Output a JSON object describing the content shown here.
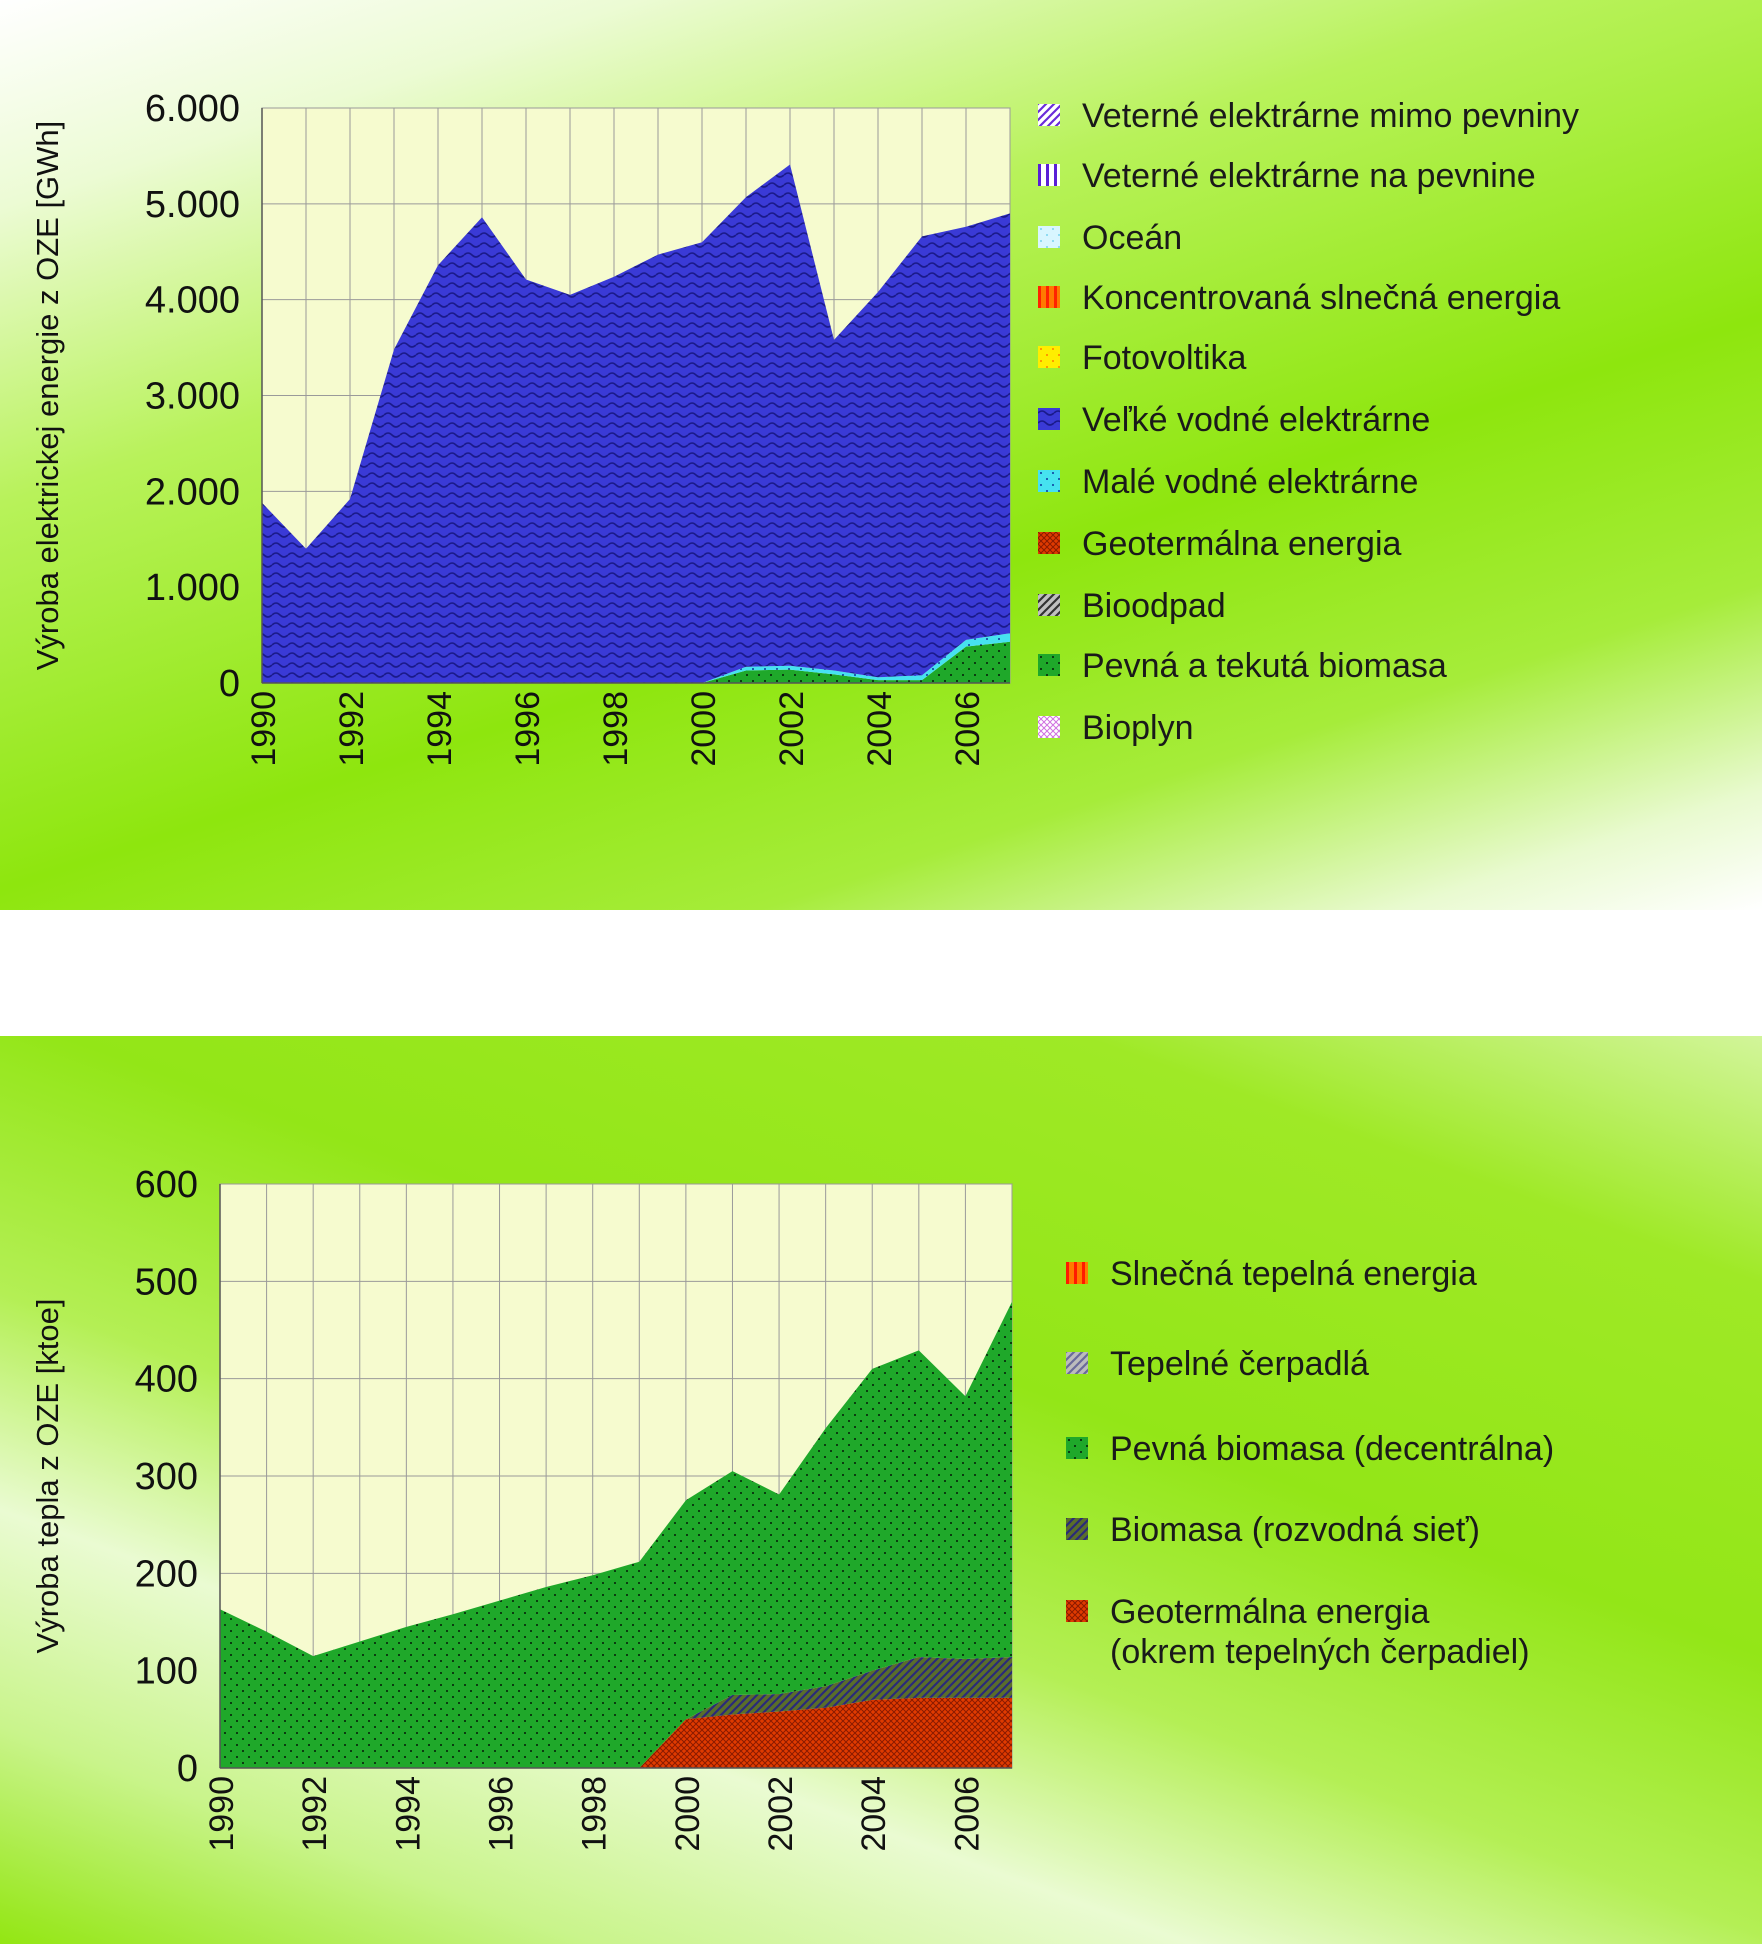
{
  "chart_data": [
    {
      "type": "area",
      "title": "",
      "ylabel": "Výroba elektrickej energie z OZE [GWh]",
      "xlabel": "",
      "ylim": [
        0,
        6000
      ],
      "y_ticks": [
        "0",
        "1.000",
        "2.000",
        "3.000",
        "4.000",
        "5.000",
        "6.000"
      ],
      "y_tick_values": [
        0,
        1000,
        2000,
        3000,
        4000,
        5000,
        6000
      ],
      "x": [
        1990,
        1991,
        1992,
        1993,
        1994,
        1995,
        1996,
        1997,
        1998,
        1999,
        2000,
        2001,
        2002,
        2003,
        2004,
        2005,
        2006,
        2007
      ],
      "x_ticks": [
        "1990",
        "1992",
        "1994",
        "1996",
        "1998",
        "2000",
        "2002",
        "2004",
        "2006"
      ],
      "grid": true,
      "legend_position": "right",
      "legend": [
        {
          "name": "Veterné elektrárne mimo pevniny",
          "color": "#ffffff",
          "accent": "#6a2bd9",
          "pattern": "diag"
        },
        {
          "name": "Veterné elektrárne na pevnine",
          "color": "#ffffff",
          "accent": "#5a1fd6",
          "pattern": "vstripe"
        },
        {
          "name": "Oceán",
          "color": "#d8f6ff",
          "accent": "#8fdcf2",
          "pattern": "dots"
        },
        {
          "name": "Koncentrovaná slnečná energia",
          "color": "#ff7a00",
          "accent": "#ff2200",
          "pattern": "vstripe"
        },
        {
          "name": "Fotovoltika",
          "color": "#ffee00",
          "accent": "#ff9900",
          "pattern": "dots"
        },
        {
          "name": "Veľké vodné elektrárne",
          "color": "#3a3ad6",
          "accent": "#1a1a8a",
          "pattern": "wave"
        },
        {
          "name": "Malé vodné elektrárne",
          "color": "#46e2f0",
          "accent": "#1a5fb0",
          "pattern": "dots"
        },
        {
          "name": "Geotermálna energia",
          "color": "#e03a00",
          "accent": "#8a1a00",
          "pattern": "cross"
        },
        {
          "name": "Bioodpad",
          "color": "#c0c0c0",
          "accent": "#333333",
          "pattern": "diag"
        },
        {
          "name": "Pevná a tekutá biomasa",
          "color": "#1fa82a",
          "accent": "#0b3d10",
          "pattern": "dots"
        },
        {
          "name": "Bioplyn",
          "color": "#ffffff",
          "accent": "#d070e0",
          "pattern": "cross"
        }
      ],
      "series": [
        {
          "name": "Pevná a tekutá biomasa",
          "color": "#1fa82a",
          "accent": "#0b3d10",
          "pattern": "dots",
          "values": [
            0,
            0,
            0,
            0,
            0,
            0,
            0,
            0,
            0,
            0,
            0,
            130,
            140,
            90,
            30,
            30,
            380,
            430
          ]
        },
        {
          "name": "Malé vodné elektrárne",
          "color": "#46e2f0",
          "accent": "#1a5fb0",
          "pattern": "dots",
          "values": [
            0,
            0,
            0,
            0,
            0,
            0,
            0,
            0,
            0,
            0,
            0,
            40,
            40,
            40,
            30,
            50,
            70,
            90
          ]
        },
        {
          "name": "Veľké vodné elektrárne",
          "color": "#3a3ad6",
          "accent": "#1a1a8a",
          "pattern": "wave",
          "values": [
            1880,
            1400,
            1920,
            3480,
            4360,
            4860,
            4210,
            4050,
            4240,
            4470,
            4600,
            4900,
            5230,
            3450,
            4020,
            4580,
            4310,
            4380
          ]
        }
      ]
    },
    {
      "type": "area",
      "title": "",
      "ylabel": "Výroba tepla z OZE [ktoe]",
      "xlabel": "",
      "ylim": [
        0,
        600
      ],
      "y_ticks": [
        "0",
        "100",
        "200",
        "300",
        "400",
        "500",
        "600"
      ],
      "y_tick_values": [
        0,
        100,
        200,
        300,
        400,
        500,
        600
      ],
      "x": [
        1990,
        1991,
        1992,
        1993,
        1994,
        1995,
        1996,
        1997,
        1998,
        1999,
        2000,
        2001,
        2002,
        2003,
        2004,
        2005,
        2006,
        2007
      ],
      "x_ticks": [
        "1990",
        "1992",
        "1994",
        "1996",
        "1998",
        "2000",
        "2002",
        "2004",
        "2006"
      ],
      "grid": true,
      "legend_position": "right",
      "legend": [
        {
          "name": "Slnečná tepelná energia",
          "color": "#ff7a00",
          "accent": "#ff1a00",
          "pattern": "vstripe"
        },
        {
          "name": "Tepelné čerpadlá",
          "color": "#bcbcbc",
          "accent": "#6a6a9a",
          "pattern": "diag"
        },
        {
          "name": "Pevná biomasa (decentrálna)",
          "color": "#1fa82a",
          "accent": "#0b3d10",
          "pattern": "dots"
        },
        {
          "name": "Biomasa (rozvodná sieť)",
          "color": "#5a6e2a",
          "accent": "#2a2a7a",
          "pattern": "diag"
        },
        {
          "name": "Geotermálna energia",
          "name_line2": "(okrem tepelných čerpadiel)",
          "color": "#e03a00",
          "accent": "#8a1a00",
          "pattern": "cross"
        }
      ],
      "series": [
        {
          "name": "Geotermálna energia (okrem tepelných čerpadiel)",
          "color": "#e03a00",
          "accent": "#8a1a00",
          "pattern": "cross",
          "values": [
            0,
            0,
            0,
            0,
            0,
            0,
            0,
            0,
            0,
            0,
            50,
            55,
            58,
            62,
            70,
            72,
            72,
            72
          ]
        },
        {
          "name": "Biomasa (rozvodná sieť)",
          "color": "#5a6e2a",
          "accent": "#2a2a7a",
          "pattern": "diag",
          "values": [
            0,
            0,
            0,
            0,
            0,
            0,
            0,
            0,
            0,
            0,
            0,
            20,
            18,
            22,
            30,
            42,
            40,
            42
          ]
        },
        {
          "name": "Pevná biomasa (decentrálna)",
          "color": "#1fa82a",
          "accent": "#0b3d10",
          "pattern": "dots",
          "values": [
            163,
            140,
            115,
            130,
            145,
            158,
            172,
            186,
            198,
            212,
            225,
            230,
            205,
            265,
            310,
            315,
            270,
            365
          ]
        }
      ]
    }
  ]
}
